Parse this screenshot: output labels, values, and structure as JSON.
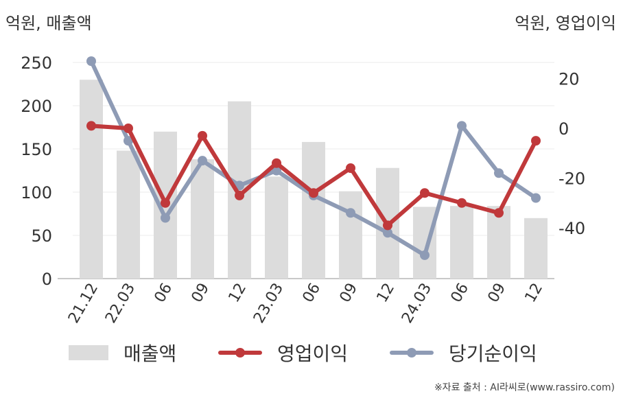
{
  "chart_data": {
    "type": "bar",
    "categories": [
      "21.12",
      "22.03",
      "06",
      "09",
      "12",
      "23.03",
      "06",
      "09",
      "12",
      "24.03",
      "06",
      "09",
      "12"
    ],
    "series": [
      {
        "name": "매출액",
        "type": "bar",
        "axis": "left",
        "color": "#dcdcdc",
        "values": [
          230,
          148,
          170,
          138,
          205,
          118,
          158,
          101,
          128,
          83,
          84,
          84,
          70
        ]
      },
      {
        "name": "영업이익",
        "type": "line",
        "axis": "right",
        "color": "#c0393b",
        "values": [
          1,
          0,
          -30,
          -3,
          -27,
          -14,
          -26,
          -16,
          -39,
          -26,
          -30,
          -34,
          -5
        ]
      },
      {
        "name": "당기순이익",
        "type": "line",
        "axis": "right",
        "color": "#8e9bb5",
        "values": [
          27,
          -5,
          -36,
          -13,
          -23,
          -17,
          -27,
          -34,
          -42,
          -51,
          1,
          -18,
          -28
        ]
      }
    ],
    "y_left": {
      "label": "억원, 매출액",
      "ticks": [
        0,
        50,
        100,
        150,
        200,
        250
      ],
      "range": [
        0,
        270
      ]
    },
    "y_right": {
      "label": "억원, 영업이익",
      "ticks": [
        20,
        0,
        -20,
        -40
      ],
      "range": [
        -60,
        35
      ]
    },
    "grid": true,
    "legend_position": "bottom"
  },
  "units": {
    "left": "억원, 매출액",
    "right": "억원, 영업이익"
  },
  "legend": {
    "bar": "매출액",
    "line1": "영업이익",
    "line2": "당기순이익"
  },
  "source": "※자료 출처 : AI라씨로(www.rassiro.com)"
}
